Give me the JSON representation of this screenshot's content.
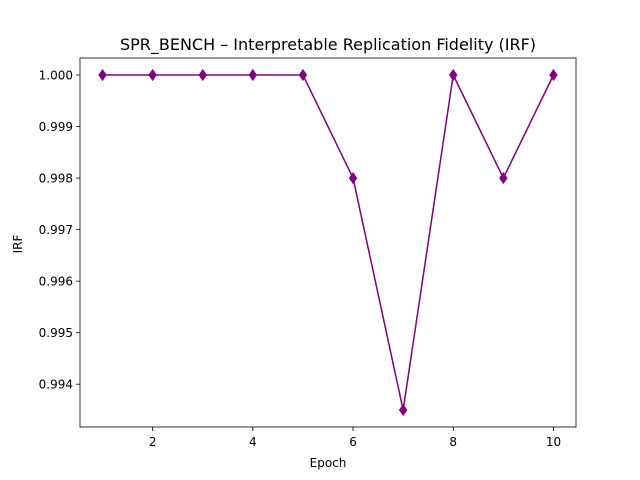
{
  "chart_data": {
    "type": "line",
    "title": "SPR_BENCH – Interpretable Replication Fidelity (IRF)",
    "xlabel": "Epoch",
    "ylabel": "IRF",
    "x": [
      1,
      2,
      3,
      4,
      5,
      6,
      7,
      8,
      9,
      10
    ],
    "series": [
      {
        "values": [
          1.0,
          1.0,
          1.0,
          1.0,
          1.0,
          0.998,
          0.9935,
          1.0,
          0.998,
          1.0
        ],
        "color": "#800080",
        "marker": "diamond"
      }
    ],
    "xlim": [
      0.55,
      10.45
    ],
    "ylim": [
      0.99317,
      1.00033
    ],
    "xticks": [
      2,
      4,
      6,
      8,
      10
    ],
    "xtick_labels": [
      "2",
      "4",
      "6",
      "8",
      "10"
    ],
    "yticks": [
      0.994,
      0.995,
      0.996,
      0.997,
      0.998,
      0.999,
      1.0
    ],
    "ytick_labels": [
      "0.994",
      "0.995",
      "0.996",
      "0.997",
      "0.998",
      "0.999",
      "1.000"
    ],
    "grid": false,
    "legend": "none"
  }
}
